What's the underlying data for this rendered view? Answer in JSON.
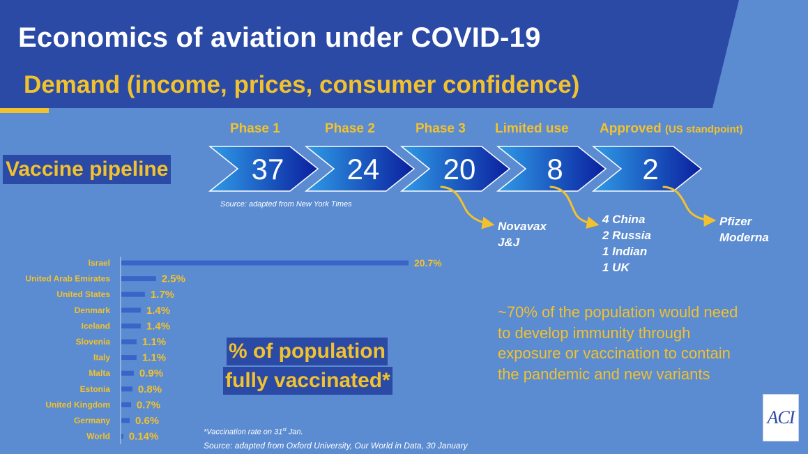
{
  "header": {
    "title": "Economics of aviation under COVID-19",
    "subtitle": "Demand (income, prices, consumer confidence)"
  },
  "pipeline": {
    "label": "Vaccine pipeline",
    "stages": [
      {
        "name": "Phase 1",
        "count": "37"
      },
      {
        "name": "Phase 2",
        "count": "24"
      },
      {
        "name": "Phase 3",
        "count": "20"
      },
      {
        "name": "Limited use",
        "count": "8"
      },
      {
        "name": "Approved",
        "note": "(US standpoint)",
        "count": "2"
      }
    ],
    "source": "Source: adapted from New York Times",
    "callouts": {
      "phase3": [
        "Novavax",
        "J&J"
      ],
      "limited": [
        "4 China",
        "2 Russia",
        "1 Indian",
        "1 UK"
      ],
      "approved": [
        "Pfizer",
        "Moderna"
      ]
    }
  },
  "chart_data": {
    "type": "bar",
    "orientation": "horizontal",
    "title": "% of population fully vaccinated*",
    "categories": [
      "Israel",
      "United Arab Emirates",
      "United States",
      "Denmark",
      "Iceland",
      "Slovenia",
      "Italy",
      "Malta",
      "Estonia",
      "United Kingdom",
      "Germany",
      "World"
    ],
    "values": [
      20.7,
      2.5,
      1.7,
      1.4,
      1.4,
      1.1,
      1.1,
      0.9,
      0.8,
      0.7,
      0.6,
      0.14
    ],
    "value_labels": [
      "20.7%",
      "2.5%",
      "1.7%",
      "1.4%",
      "1.4%",
      "1.1%",
      "1.1%",
      "0.9%",
      "0.8%",
      "0.7%",
      "0.6%",
      "0.14%"
    ],
    "xlim": [
      0,
      20.7
    ],
    "grid": false,
    "bar_color": "#3a64c8",
    "label_color": "#f2c22e"
  },
  "chart_title_lines": [
    "% of population",
    "fully vaccinated*"
  ],
  "footnotes": {
    "vaccination_rate_pre": "*Vaccination rate on 31",
    "vaccination_rate_sup": "st",
    "vaccination_rate_post": " Jan.",
    "source": "Source: adapted from Oxford University, Our World in Data, 30 January"
  },
  "immunity_note": "~70% of the population would need to develop immunity through exposure or vaccination to contain the pandemic and new variants",
  "logo": {
    "text": "ACI"
  },
  "colors": {
    "background": "#5b8bd0",
    "header_band": "#2a4aa6",
    "accent_yellow": "#f2c22e",
    "chevron_light": "#2f9be6",
    "chevron_dark": "#0a1f9e"
  }
}
